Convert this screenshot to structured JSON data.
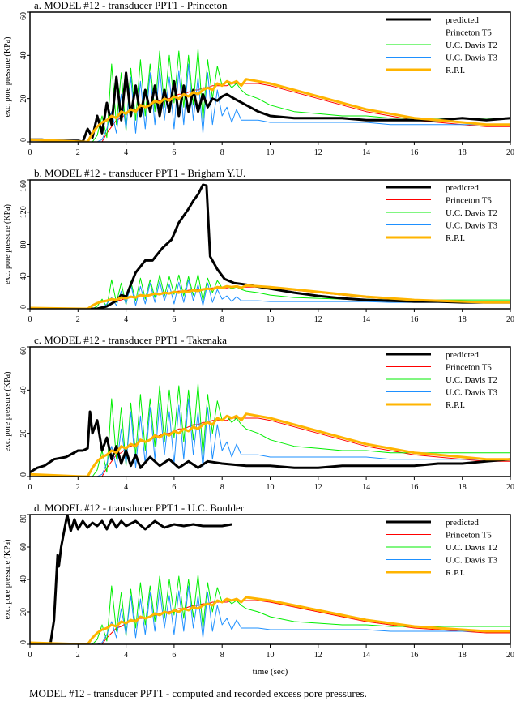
{
  "caption": "MODEL #12 - transducer PPT1 - computed and recorded excess pore pressures.",
  "legend": [
    {
      "label": "predicted",
      "color": "#000000"
    },
    {
      "label": "Princeton T5",
      "color": "#ff0000"
    },
    {
      "label": "U.C. Davis T2",
      "color": "#00ee00"
    },
    {
      "label": "U.C. Davis T3",
      "color": "#1e90ff"
    },
    {
      "label": "R.P.I.",
      "color": "#ffb400"
    }
  ],
  "chart_data": {
    "type": "line",
    "xlabel": "time (sec)",
    "ylabel": "exc. pore pressure (KPa)",
    "xlim": [
      0,
      20
    ],
    "xticks": [
      0,
      2,
      4,
      6,
      8,
      10,
      12,
      14,
      16,
      18,
      20
    ],
    "grid": false,
    "legend_placement": "top-right",
    "recorded_series": {
      "x": [
        0,
        2.2,
        2.4,
        2.6,
        2.8,
        3.0,
        3.2,
        3.4,
        3.6,
        3.8,
        4.0,
        4.2,
        4.4,
        4.6,
        4.8,
        5.0,
        5.2,
        5.4,
        5.6,
        5.8,
        6.0,
        6.2,
        6.4,
        6.6,
        6.8,
        7.0,
        7.2,
        7.4,
        7.6,
        7.8,
        8.0,
        8.2,
        8.4,
        8.6,
        8.8,
        9.0,
        9.5,
        10,
        11,
        12,
        13,
        14,
        15,
        16,
        17,
        18,
        19,
        20
      ],
      "series": [
        {
          "name": "Princeton T5",
          "values": [
            0,
            0,
            0,
            0,
            0,
            0,
            4,
            7,
            10,
            11,
            13,
            14,
            15,
            16,
            16,
            17,
            18,
            19,
            20,
            20,
            21,
            22,
            22,
            23,
            24,
            24,
            25,
            25,
            26,
            26,
            26,
            26,
            27,
            27,
            27,
            27,
            27,
            26,
            23,
            20,
            17,
            14,
            12,
            10,
            9,
            8,
            7,
            7
          ]
        },
        {
          "name": "U.C. Davis T2",
          "values": [
            0,
            0,
            0,
            0,
            3,
            12,
            2,
            36,
            8,
            32,
            5,
            34,
            10,
            38,
            12,
            36,
            14,
            42,
            16,
            40,
            18,
            42,
            16,
            40,
            17,
            43,
            10,
            38,
            20,
            35,
            26,
            28,
            25,
            27,
            24,
            22,
            20,
            17,
            14,
            13,
            12,
            12,
            11,
            11,
            11,
            11,
            11,
            11
          ]
        },
        {
          "name": "U.C. Davis T3",
          "values": [
            0,
            0,
            0,
            0,
            0,
            1,
            6,
            14,
            4,
            22,
            6,
            30,
            4,
            28,
            6,
            32,
            8,
            34,
            10,
            30,
            6,
            33,
            8,
            36,
            10,
            30,
            4,
            32,
            8,
            24,
            12,
            16,
            9,
            15,
            10,
            10,
            10,
            9,
            9,
            9,
            9,
            9,
            8,
            8,
            8,
            8,
            8,
            8
          ]
        },
        {
          "name": "R.P.I.",
          "values": [
            1,
            0,
            0,
            4,
            7,
            9,
            10,
            12,
            11,
            14,
            13,
            15,
            14,
            17,
            16,
            17,
            19,
            18,
            20,
            19,
            21,
            20,
            22,
            21,
            23,
            22,
            24,
            25,
            24,
            27,
            26,
            28,
            27,
            28,
            26,
            29,
            28,
            27,
            24,
            21,
            18,
            15,
            13,
            11,
            10,
            9,
            8,
            8
          ]
        }
      ]
    },
    "panels": [
      {
        "title": "a. MODEL #12 - transducer PPT1 - Princeton",
        "ylim": [
          0,
          60
        ],
        "yticks": [
          0,
          20,
          40,
          60
        ],
        "predicted": {
          "x": [
            0,
            0.5,
            1,
            1.5,
            2,
            2.2,
            2.4,
            2.6,
            2.8,
            3.0,
            3.2,
            3.4,
            3.6,
            3.8,
            4.0,
            4.2,
            4.4,
            4.6,
            4.8,
            5.0,
            5.2,
            5.4,
            5.6,
            5.8,
            6.0,
            6.2,
            6.4,
            6.6,
            6.8,
            7.0,
            7.2,
            7.4,
            7.6,
            7.8,
            8.0,
            8.2,
            8.5,
            9.0,
            9.5,
            10,
            11,
            12,
            13,
            14,
            15,
            16,
            17,
            18,
            19,
            20
          ],
          "values": [
            1,
            1,
            0.5,
            0.5,
            0.5,
            0,
            6,
            2,
            12,
            4,
            18,
            8,
            30,
            10,
            32,
            12,
            26,
            12,
            24,
            14,
            26,
            12,
            24,
            14,
            28,
            12,
            26,
            14,
            24,
            14,
            22,
            16,
            20,
            19,
            21,
            22,
            20,
            17,
            14,
            12,
            11,
            11,
            11,
            10,
            10,
            10,
            10,
            11,
            10,
            11
          ]
        }
      },
      {
        "title": "b. MODEL #12 - transducer PPT1 - Brigham Y.U.",
        "ylim": [
          0,
          160
        ],
        "yticks": [
          0,
          40,
          80,
          120,
          160
        ],
        "predicted": {
          "x": [
            0,
            2.8,
            3.2,
            3.6,
            3.8,
            4.0,
            4.2,
            4.4,
            4.8,
            5.1,
            5.5,
            5.9,
            6.2,
            6.6,
            6.8,
            7.0,
            7.2,
            7.35,
            7.5,
            7.8,
            8.1,
            8.5,
            9,
            10,
            11,
            12,
            13,
            14,
            15,
            16,
            17,
            18,
            19,
            20
          ],
          "values": [
            0,
            0,
            3,
            10,
            17,
            15,
            30,
            45,
            60,
            60,
            75,
            86,
            107,
            124,
            134,
            142,
            154,
            153,
            65,
            49,
            37,
            32,
            30,
            25,
            20,
            16,
            13,
            11,
            10,
            9,
            9,
            8,
            8,
            8
          ]
        }
      },
      {
        "title": "c. MODEL #12 - transducer PPT1 - Takenaka",
        "ylim": [
          0,
          60
        ],
        "yticks": [
          0,
          20,
          40,
          60
        ],
        "predicted": {
          "x": [
            0,
            0.3,
            0.6,
            1.0,
            1.5,
            2.0,
            2.2,
            2.4,
            2.5,
            2.6,
            2.8,
            3.0,
            3.2,
            3.4,
            3.6,
            3.8,
            4.0,
            4.2,
            4.4,
            4.6,
            5.0,
            5.4,
            5.8,
            6.2,
            6.6,
            7.0,
            7.4,
            8,
            9,
            10,
            11,
            12,
            13,
            14,
            15,
            16,
            17,
            18,
            19,
            20
          ],
          "values": [
            2,
            4,
            5,
            8,
            9,
            12,
            12,
            13,
            30,
            20,
            26,
            12,
            18,
            8,
            14,
            6,
            12,
            5,
            10,
            4,
            9,
            5,
            8,
            4,
            7,
            4,
            7,
            6,
            5,
            5,
            4,
            4,
            5,
            5,
            5,
            5,
            6,
            6,
            7,
            8
          ]
        }
      },
      {
        "title": "d. MODEL #12 - transducer PPT1 - U.C. Boulder",
        "ylim": [
          0,
          80
        ],
        "yticks": [
          0,
          20,
          40,
          60,
          80
        ],
        "predicted": {
          "x": [
            0,
            0.85,
            1.0,
            1.15,
            1.2,
            1.3,
            1.4,
            1.55,
            1.7,
            1.85,
            2.0,
            2.2,
            2.4,
            2.6,
            2.8,
            3.0,
            3.2,
            3.4,
            3.6,
            3.8,
            4.0,
            4.4,
            4.8,
            5.2,
            5.6,
            6.0,
            6.4,
            6.8,
            7.2,
            7.6,
            8.0,
            8.4
          ],
          "values": [
            0,
            0,
            15,
            55,
            48,
            60,
            68,
            80,
            70,
            77,
            71,
            76,
            72,
            75,
            73,
            76,
            71,
            77,
            72,
            76,
            73,
            76,
            71,
            76,
            72,
            74,
            73,
            74,
            73,
            73,
            73,
            74
          ]
        }
      }
    ]
  }
}
